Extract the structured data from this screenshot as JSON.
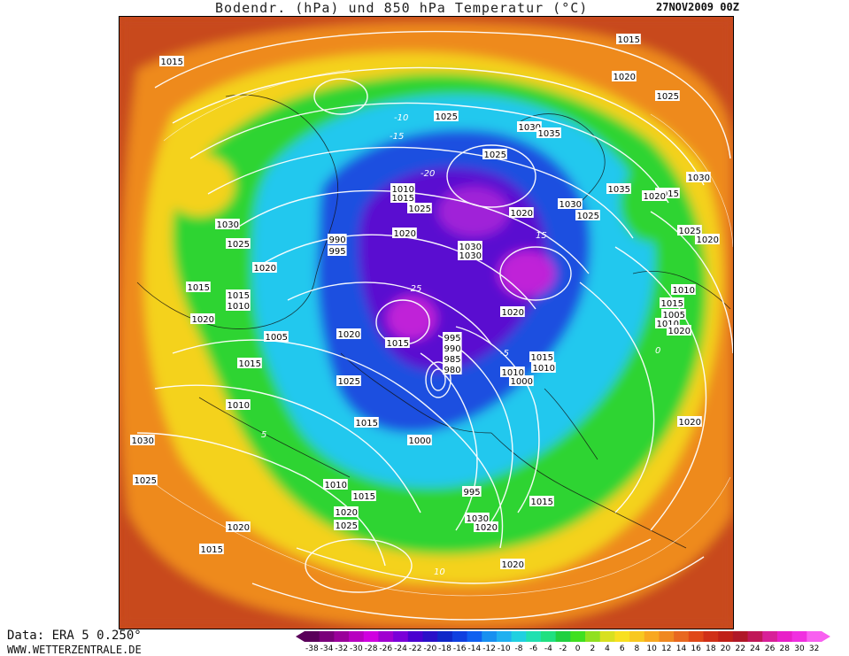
{
  "header": {
    "title": "Bodendr. (hPa) und 850 hPa Temperatur (°C)",
    "date": "27NOV2009 00Z"
  },
  "footer": {
    "data_source": "Data: ERA 5 0.250°",
    "website": "WWW.WETTERZENTRALE.DE"
  },
  "legend": {
    "ticks": [
      "-38",
      "-34",
      "-32",
      "-30",
      "-28",
      "-26",
      "-24",
      "-22",
      "-20",
      "-18",
      "-16",
      "-14",
      "-12",
      "-10",
      "-8",
      "-6",
      "-4",
      "-2",
      "0",
      "2",
      "4",
      "6",
      "8",
      "10",
      "12",
      "14",
      "16",
      "18",
      "20",
      "22",
      "24",
      "26",
      "28",
      "30",
      "32"
    ],
    "colors": [
      "#5a005a",
      "#7a007a",
      "#9a009a",
      "#b800c0",
      "#d000e0",
      "#a000d0",
      "#7a00d8",
      "#4a00d0",
      "#2a10c8",
      "#1028c8",
      "#1040e0",
      "#1060f0",
      "#1890f0",
      "#20b0f0",
      "#20d0e0",
      "#20e0b0",
      "#20e080",
      "#20d040",
      "#40e020",
      "#90e020",
      "#d8e020",
      "#f8e020",
      "#f8c820",
      "#f8a820",
      "#f08820",
      "#e86820",
      "#e04818",
      "#d03018",
      "#c02018",
      "#b01828",
      "#c01858",
      "#d82098",
      "#e820c8",
      "#f030e0",
      "#f860f0"
    ]
  },
  "isobar_labels": [
    "1015",
    "1015",
    "1020",
    "1025",
    "1030",
    "1035",
    "1025",
    "1030",
    "1010",
    "1015",
    "1025",
    "1020",
    "990",
    "995",
    "1030",
    "1025",
    "1020",
    "1015",
    "1015",
    "1010",
    "1020",
    "1005",
    "1015",
    "1015",
    "1020",
    "1025",
    "1010",
    "1020",
    "1030",
    "1010",
    "1015",
    "1020",
    "1025",
    "1000",
    "995",
    "990",
    "985",
    "980",
    "1015",
    "1010",
    "1000",
    "1020",
    "1025",
    "1035",
    "1030",
    "1025",
    "1015",
    "1020",
    "1030",
    "1030",
    "1020",
    "1025",
    "1020",
    "1010",
    "1015",
    "1005",
    "1010",
    "1020",
    "995",
    "1015",
    "1030",
    "1020",
    "1010",
    "1015",
    "1015",
    "1020",
    "1020",
    "1025"
  ],
  "temperature_labels": [
    "-10",
    "-15",
    "-20",
    "-25",
    "-5",
    "0",
    "5",
    "10",
    "15"
  ],
  "colors": {
    "warm_outer": "#c84a1e",
    "orange": "#ee8a1e",
    "yellow": "#f4d21e",
    "green": "#2ed430",
    "cyan": "#22c8ee",
    "blue": "#1a50e0",
    "violet": "#5a10d0",
    "magenta": "#c020d8",
    "isobar": "#ffffff"
  }
}
